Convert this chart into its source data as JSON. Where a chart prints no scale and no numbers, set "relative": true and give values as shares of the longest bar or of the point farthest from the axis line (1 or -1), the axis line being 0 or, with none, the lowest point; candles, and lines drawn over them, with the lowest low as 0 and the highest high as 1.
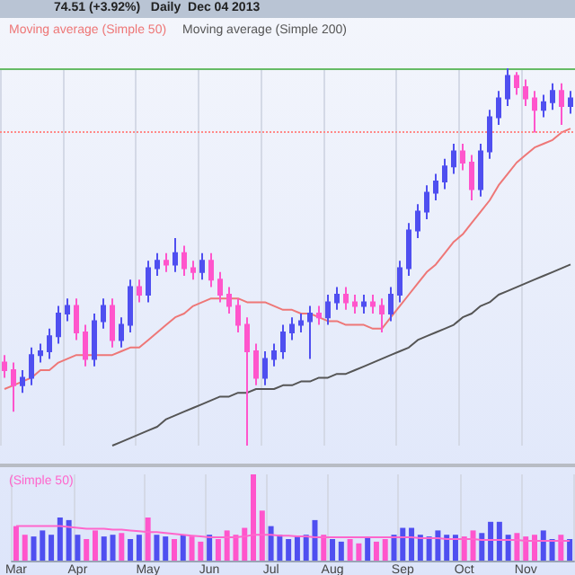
{
  "chart_data": [
    {
      "type": "candlestick",
      "title": "74.51 (+3.92%)   Daily  Dec 04 2013",
      "relative": true,
      "grid": "x",
      "legend": "top left",
      "tick_labels": false,
      "colors": [
        "#ff55cc",
        "#ff55cc",
        "#4f4ff0",
        "#4f4ff0",
        "#4f4ff0",
        "#4f4ff0",
        "#4f4ff0",
        "#4f4ff0",
        "#ff55cc",
        "#ff55cc",
        "#4f4ff0",
        "#4f4ff0",
        "#ff55cc",
        "#4f4ff0",
        "#4f4ff0",
        "#ff55cc",
        "#4f4ff0",
        "#4f4ff0",
        "#ff55cc",
        "#4f4ff0",
        "#ff55cc",
        "#ff55cc",
        "#4f4ff0",
        "#ff55cc",
        "#ff55cc",
        "#ff55cc",
        "#ff55cc",
        "#ff55cc",
        "#ff55cc",
        "#4f4ff0",
        "#4f4ff0",
        "#4f4ff0",
        "#4f4ff0",
        "#4f4ff0",
        "#4f4ff0",
        "#ff55cc",
        "#4f4ff0",
        "#4f4ff0",
        "#ff55cc",
        "#ff55cc",
        "#4f4ff0",
        "#ff55cc",
        "#ff55cc",
        "#4f4ff0",
        "#4f4ff0",
        "#4f4ff0",
        "#4f4ff0",
        "#4f4ff0",
        "#4f4ff0",
        "#4f4ff0",
        "#4f4ff0",
        "#ff55cc",
        "#ff55cc",
        "#4f4ff0",
        "#4f4ff0",
        "#4f4ff0",
        "#4f4ff0",
        "#ff55cc",
        "#ff55cc",
        "#ff55cc",
        "#4f4ff0",
        "#4f4ff0",
        "#ff55cc",
        "#4f4ff0"
      ],
      "categories": [
        null,
        null,
        null,
        null,
        null,
        null,
        null,
        null,
        null,
        null,
        null,
        null,
        null,
        null,
        null,
        null,
        null,
        null,
        null,
        null,
        null,
        null,
        null,
        null,
        null,
        null,
        null,
        null,
        null,
        null,
        null,
        null,
        null,
        null,
        null,
        null,
        null,
        null,
        null,
        null,
        null,
        null,
        null,
        null,
        null,
        null,
        null,
        null,
        null,
        null,
        null,
        null,
        null,
        null,
        null,
        null,
        null,
        null,
        null,
        null,
        null,
        null,
        null,
        null
      ],
      "ohlc": [
        [
          0.22,
          0.24,
          0.18,
          0.2
        ],
        [
          0.2,
          0.22,
          0.09,
          0.16
        ],
        [
          0.16,
          0.2,
          0.14,
          0.18
        ],
        [
          0.18,
          0.26,
          0.16,
          0.24
        ],
        [
          0.24,
          0.27,
          0.22,
          0.25
        ],
        [
          0.25,
          0.31,
          0.23,
          0.29
        ],
        [
          0.29,
          0.37,
          0.27,
          0.35
        ],
        [
          0.35,
          0.39,
          0.33,
          0.37
        ],
        [
          0.37,
          0.39,
          0.28,
          0.3
        ],
        [
          0.3,
          0.32,
          0.21,
          0.23
        ],
        [
          0.23,
          0.35,
          0.21,
          0.33
        ],
        [
          0.33,
          0.39,
          0.31,
          0.37
        ],
        [
          0.37,
          0.39,
          0.26,
          0.28
        ],
        [
          0.28,
          0.34,
          0.26,
          0.32
        ],
        [
          0.32,
          0.44,
          0.3,
          0.42
        ],
        [
          0.42,
          0.44,
          0.38,
          0.4
        ],
        [
          0.4,
          0.49,
          0.38,
          0.47
        ],
        [
          0.47,
          0.51,
          0.45,
          0.49
        ],
        [
          0.49,
          0.51,
          0.46,
          0.48
        ],
        [
          0.48,
          0.55,
          0.46,
          0.51
        ],
        [
          0.51,
          0.53,
          0.45,
          0.47
        ],
        [
          0.47,
          0.49,
          0.44,
          0.46
        ],
        [
          0.46,
          0.51,
          0.44,
          0.49
        ],
        [
          0.49,
          0.51,
          0.42,
          0.44
        ],
        [
          0.44,
          0.46,
          0.38,
          0.4
        ],
        [
          0.4,
          0.42,
          0.35,
          0.37
        ],
        [
          0.37,
          0.39,
          0.3,
          0.32
        ],
        [
          0.32,
          0.34,
          0,
          0.25
        ],
        [
          0.25,
          0.27,
          0.16,
          0.18
        ],
        [
          0.18,
          0.25,
          0.16,
          0.23
        ],
        [
          0.23,
          0.27,
          0.21,
          0.25
        ],
        [
          0.25,
          0.32,
          0.23,
          0.3
        ],
        [
          0.3,
          0.34,
          0.28,
          0.32
        ],
        [
          0.32,
          0.35,
          0.3,
          0.33
        ],
        [
          0.33,
          0.37,
          0.23,
          0.35
        ],
        [
          0.35,
          0.37,
          0.32,
          0.34
        ],
        [
          0.34,
          0.4,
          0.32,
          0.38
        ],
        [
          0.38,
          0.42,
          0.36,
          0.4
        ],
        [
          0.4,
          0.42,
          0.36,
          0.38
        ],
        [
          0.38,
          0.4,
          0.35,
          0.37
        ],
        [
          0.37,
          0.4,
          0.35,
          0.38
        ],
        [
          0.38,
          0.4,
          0.35,
          0.37
        ],
        [
          0.37,
          0.39,
          0.3,
          0.35
        ],
        [
          0.35,
          0.42,
          0.33,
          0.4
        ],
        [
          0.4,
          0.49,
          0.38,
          0.47
        ],
        [
          0.47,
          0.59,
          0.45,
          0.57
        ],
        [
          0.57,
          0.64,
          0.55,
          0.62
        ],
        [
          0.62,
          0.69,
          0.6,
          0.67
        ],
        [
          0.67,
          0.72,
          0.65,
          0.7
        ],
        [
          0.7,
          0.76,
          0.68,
          0.74
        ],
        [
          0.74,
          0.8,
          0.72,
          0.78
        ],
        [
          0.78,
          0.8,
          0.73,
          0.75
        ],
        [
          0.75,
          0.77,
          0.65,
          0.68
        ],
        [
          0.68,
          0.8,
          0.66,
          0.78
        ],
        [
          0.78,
          0.89,
          0.76,
          0.87
        ],
        [
          0.87,
          0.94,
          0.85,
          0.92
        ],
        [
          0.92,
          1,
          0.9,
          0.98
        ],
        [
          0.98,
          0.99,
          0.93,
          0.95
        ],
        [
          0.95,
          0.97,
          0.9,
          0.92
        ],
        [
          0.92,
          0.94,
          0.83,
          0.89
        ],
        [
          0.89,
          0.93,
          0.87,
          0.91
        ],
        [
          0.91,
          0.96,
          0.89,
          0.94
        ],
        [
          0.94,
          0.96,
          0.85,
          0.9
        ],
        [
          0.9,
          0.94,
          0.88,
          0.92
        ]
      ],
      "series": [
        {
          "type": "line",
          "name": "Moving average (Simple 50)",
          "color": "#ee7777",
          "values": [
            0.15,
            0.16,
            0.17,
            0.18,
            0.2,
            0.2,
            0.22,
            0.23,
            0.24,
            0.24,
            0.24,
            0.24,
            0.24,
            0.25,
            0.26,
            0.26,
            0.28,
            0.3,
            0.32,
            0.34,
            0.35,
            0.37,
            0.38,
            0.39,
            0.39,
            0.39,
            0.39,
            0.38,
            0.38,
            0.38,
            0.37,
            0.36,
            0.36,
            0.35,
            0.35,
            0.34,
            0.33,
            0.33,
            0.32,
            0.32,
            0.32,
            0.31,
            0.31,
            0.34,
            0.37,
            0.4,
            0.43,
            0.46,
            0.48,
            0.51,
            0.54,
            0.56,
            0.59,
            0.62,
            0.65,
            0.69,
            0.72,
            0.75,
            0.77,
            0.79,
            0.8,
            0.81,
            0.83,
            0.84
          ]
        },
        {
          "type": "line",
          "name": "Moving average (Simple 200)",
          "color": "#555555",
          "values": [
            null,
            null,
            null,
            null,
            null,
            null,
            null,
            null,
            null,
            null,
            null,
            null,
            0,
            0.01,
            0.02,
            0.03,
            0.04,
            0.05,
            0.07,
            0.08,
            0.09,
            0.1,
            0.11,
            0.12,
            0.13,
            0.13,
            0.14,
            0.14,
            0.15,
            0.15,
            0.15,
            0.16,
            0.16,
            0.17,
            0.17,
            0.18,
            0.18,
            0.19,
            0.19,
            0.2,
            0.21,
            0.22,
            0.23,
            0.24,
            0.25,
            0.26,
            0.28,
            0.29,
            0.3,
            0.31,
            0.32,
            0.34,
            0.35,
            0.37,
            0.38,
            0.4,
            0.41,
            0.42,
            0.43,
            0.44,
            0.45,
            0.46,
            0.47,
            0.48
          ]
        }
      ],
      "ref_lines": [
        {
          "axis": "y",
          "value": 1,
          "color": "#66bb66",
          "line_style": "solid"
        },
        {
          "axis": "y",
          "value": 0.83,
          "color": "#ff8888",
          "line_style": "dotted"
        }
      ]
    },
    {
      "type": "bar",
      "relative": true,
      "grid": "x",
      "legend": "top left",
      "tick_labels": "x",
      "categories": [
        "Mar",
        null,
        null,
        null,
        null,
        null,
        null,
        "Apr",
        null,
        null,
        null,
        null,
        null,
        null,
        null,
        "May",
        null,
        null,
        null,
        null,
        null,
        null,
        "Jun",
        null,
        null,
        null,
        null,
        null,
        null,
        "Jul",
        null,
        null,
        null,
        null,
        null,
        null,
        "Aug",
        null,
        null,
        null,
        null,
        null,
        null,
        null,
        "Sep",
        null,
        null,
        null,
        null,
        null,
        null,
        "Oct",
        null,
        null,
        null,
        null,
        null,
        null,
        "Nov",
        null,
        null,
        null,
        null,
        null
      ],
      "series": [
        {
          "type": "bar",
          "values": [
            0.4,
            0.3,
            0.28,
            0.35,
            0.3,
            0.5,
            0.47,
            0.3,
            0.25,
            0.35,
            0.28,
            0.3,
            0.32,
            0.25,
            0.3,
            0.5,
            0.3,
            0.28,
            0.25,
            0.3,
            0.28,
            0.22,
            0.3,
            0.25,
            0.35,
            0.3,
            0.38,
            1,
            0.58,
            0.4,
            0.3,
            0.25,
            0.28,
            0.3,
            0.47,
            0.3,
            0.25,
            0.22,
            0.25,
            0.2,
            0.28,
            0.22,
            0.25,
            0.3,
            0.38,
            0.38,
            0.3,
            0.28,
            0.35,
            0.3,
            0.3,
            0.28,
            0.35,
            0.32,
            0.45,
            0.45,
            0.3,
            0.32,
            0.28,
            0.3,
            0.35,
            0.25,
            0.3,
            0.25
          ],
          "colors": [
            "#ff55cc",
            "#ff55cc",
            "#4f4ff0",
            "#4f4ff0",
            "#4f4ff0",
            "#4f4ff0",
            "#4f4ff0",
            "#4f4ff0",
            "#ff55cc",
            "#ff55cc",
            "#4f4ff0",
            "#4f4ff0",
            "#ff55cc",
            "#4f4ff0",
            "#4f4ff0",
            "#ff55cc",
            "#4f4ff0",
            "#4f4ff0",
            "#ff55cc",
            "#4f4ff0",
            "#ff55cc",
            "#ff55cc",
            "#4f4ff0",
            "#ff55cc",
            "#ff55cc",
            "#ff55cc",
            "#ff55cc",
            "#ff55cc",
            "#ff55cc",
            "#4f4ff0",
            "#4f4ff0",
            "#4f4ff0",
            "#4f4ff0",
            "#4f4ff0",
            "#4f4ff0",
            "#ff55cc",
            "#4f4ff0",
            "#4f4ff0",
            "#ff55cc",
            "#ff55cc",
            "#4f4ff0",
            "#ff55cc",
            "#ff55cc",
            "#4f4ff0",
            "#4f4ff0",
            "#4f4ff0",
            "#4f4ff0",
            "#4f4ff0",
            "#4f4ff0",
            "#4f4ff0",
            "#4f4ff0",
            "#ff55cc",
            "#ff55cc",
            "#4f4ff0",
            "#4f4ff0",
            "#4f4ff0",
            "#4f4ff0",
            "#ff55cc",
            "#ff55cc",
            "#ff55cc",
            "#4f4ff0",
            "#4f4ff0",
            "#ff55cc",
            "#4f4ff0"
          ]
        },
        {
          "type": "line",
          "name": "(Simple 50)",
          "color": "#ff66cc",
          "values": [
            0.4,
            0.4,
            0.4,
            0.4,
            0.4,
            0.4,
            0.39,
            0.38,
            0.37,
            0.37,
            0.37,
            0.36,
            0.36,
            0.35,
            0.34,
            0.33,
            0.33,
            0.32,
            0.31,
            0.3,
            0.29,
            0.28,
            0.27,
            0.27,
            0.27,
            0.27,
            0.28,
            0.3,
            0.3,
            0.3,
            0.29,
            0.29,
            0.28,
            0.28,
            0.27,
            0.27,
            0.27,
            0.27,
            0.27,
            0.27,
            0.27,
            0.27,
            0.27,
            0.27,
            0.27,
            0.27,
            0.26,
            0.26,
            0.26,
            0.25,
            0.25,
            0.25,
            0.25,
            0.24,
            0.24,
            0.24,
            0.24,
            0.24,
            0.23,
            0.23,
            0.23,
            0.23,
            0.23,
            0.23
          ]
        }
      ]
    }
  ]
}
